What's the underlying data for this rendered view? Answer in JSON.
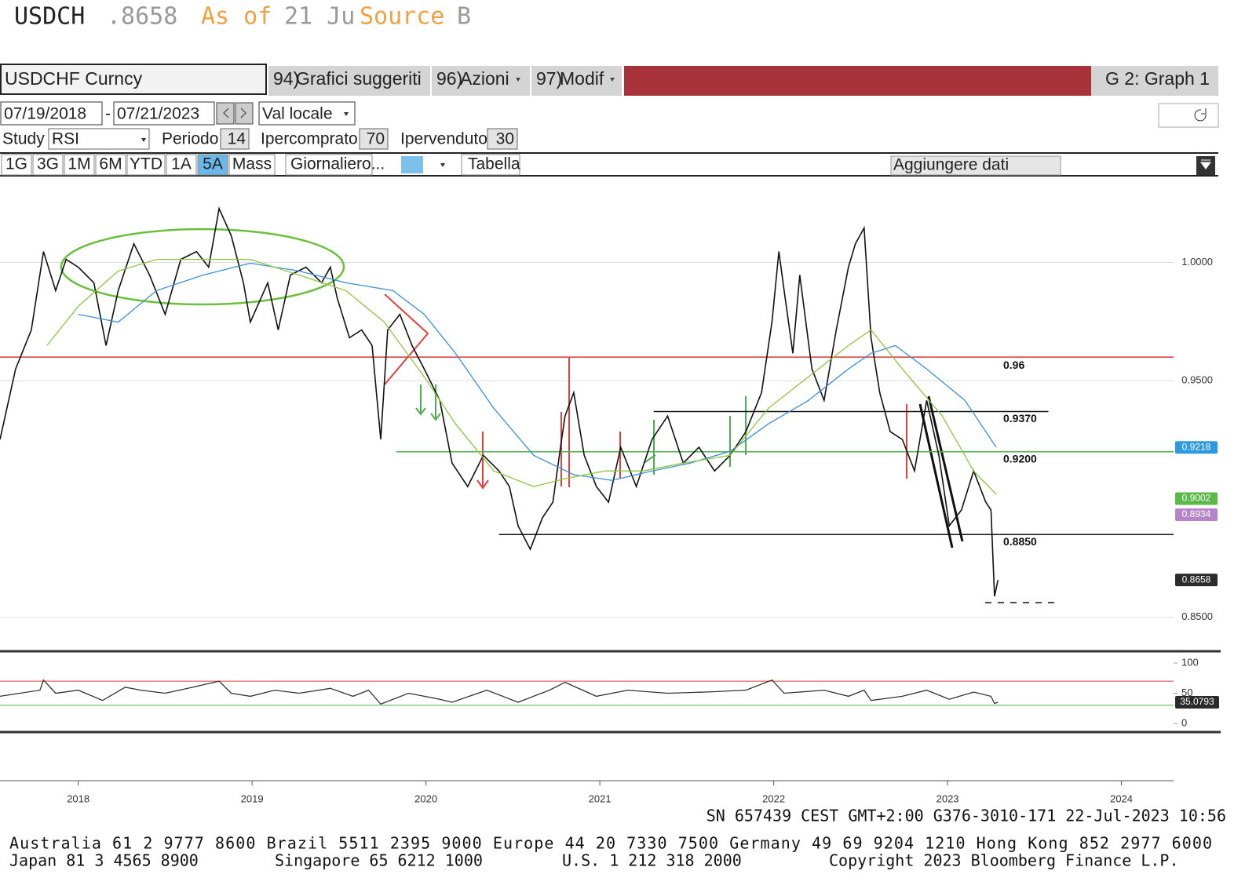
{
  "header": {
    "ticker": "USDCH",
    "price": ".8658",
    "as_of": "As of",
    "date": "21 Ju",
    "source": "Source",
    "source_rest": "B"
  },
  "toolbar": {
    "security": "USDCHF Curncy",
    "menu": [
      {
        "num": "94)",
        "label": "Grafici suggeriti"
      },
      {
        "num": "96)",
        "label": "Azioni"
      },
      {
        "num": "97)",
        "label": "Modif"
      }
    ],
    "graph": "G 2: Graph 1",
    "start_date": "07/19/2018",
    "end_date": "07/21/2023",
    "currency": "Val locale",
    "study_label": "Study",
    "study": "RSI",
    "period_label": "Periodo",
    "period": 14,
    "overbought_label": "Ipercomprato",
    "overbought": 70,
    "oversold_label": "Ipervenduto",
    "oversold": 30,
    "ranges": [
      "1G",
      "3G",
      "1M",
      "6M",
      "YTD",
      "1A",
      "5A",
      "Mass"
    ],
    "active_range": 6,
    "frequency": "Giornaliero...",
    "table": "Tabella",
    "add_data": "Aggiungere dati"
  },
  "chart_data": [
    {
      "type": "line",
      "x": [
        2017.55,
        2017.64,
        2017.73,
        2017.8,
        2017.87,
        2017.93,
        2018.0,
        2018.09,
        2018.16,
        2018.23,
        2018.32,
        2018.41,
        2018.5,
        2018.59,
        2018.68,
        2018.75,
        2018.81,
        2018.88,
        2018.95,
        2018.99,
        2019.09,
        2019.15,
        2019.22,
        2019.31,
        2019.4,
        2019.45,
        2019.49,
        2019.56,
        2019.63,
        2019.69,
        2019.74,
        2019.78,
        2019.85,
        2019.92,
        2019.99,
        2020.08,
        2020.15,
        2020.24,
        2020.33,
        2020.42,
        2020.48,
        2020.53,
        2020.6,
        2020.67,
        2020.73,
        2020.78,
        2020.8,
        2020.85,
        2020.91,
        2020.98,
        2021.05,
        2021.12,
        2021.21,
        2021.3,
        2021.39,
        2021.48,
        2021.57,
        2021.66,
        2021.75,
        2021.84,
        2021.93,
        2021.99,
        2022.03,
        2022.06,
        2022.11,
        2022.15,
        2022.22,
        2022.29,
        2022.36,
        2022.43,
        2022.47,
        2022.52,
        2022.56,
        2022.61,
        2022.67,
        2022.74,
        2022.81,
        2022.88,
        2022.95,
        2023.01,
        2023.08,
        2023.15,
        2023.22,
        2023.25,
        2023.27,
        2023.29
      ],
      "series": [
        {
          "color": "#111111",
          "values": [
            0.9252,
            0.955,
            0.9715,
            1.0046,
            0.9881,
            1.0013,
            0.998,
            0.9914,
            0.9649,
            0.9881,
            1.0079,
            0.9947,
            0.9781,
            1.0013,
            1.0046,
            0.998,
            1.0228,
            1.0113,
            0.9914,
            0.9748,
            0.9914,
            0.9715,
            0.9947,
            0.998,
            0.9914,
            0.998,
            0.9848,
            0.9682,
            0.9715,
            0.9649,
            0.9252,
            0.9715,
            0.9781,
            0.9649,
            0.955,
            0.9417,
            0.9152,
            0.9053,
            0.9185,
            0.9119,
            0.9053,
            0.8887,
            0.8788,
            0.8921,
            0.8987,
            0.9252,
            0.9351,
            0.945,
            0.9185,
            0.9053,
            0.8987,
            0.9219,
            0.9053,
            0.9252,
            0.9351,
            0.9152,
            0.9219,
            0.9119,
            0.9185,
            0.9285,
            0.945,
            0.9748,
            1.0046,
            0.9881,
            0.9616,
            0.9947,
            0.955,
            0.9417,
            0.9715,
            0.998,
            1.0079,
            1.0146,
            0.9682,
            0.945,
            0.9285,
            0.9252,
            0.9119,
            0.9417,
            0.9185,
            0.8887,
            0.8954,
            0.9119,
            0.8987,
            0.8954,
            0.8589,
            0.8658
          ]
        },
        {
          "color": "#3a8fd8",
          "x": [
            2018.0,
            2018.23,
            2018.45,
            2018.72,
            2018.99,
            2019.27,
            2019.54,
            2019.81,
            2019.99,
            2020.17,
            2020.39,
            2020.62,
            2020.85,
            2021.07,
            2021.3,
            2021.52,
            2021.75,
            2021.97,
            2022.2,
            2022.43,
            2022.56,
            2022.7,
            2022.88,
            2023.1,
            2023.28
          ],
          "values": [
            0.9781,
            0.9748,
            0.9881,
            0.9947,
            0.9997,
            0.9964,
            0.9914,
            0.9881,
            0.9781,
            0.9616,
            0.9384,
            0.9185,
            0.9103,
            0.9079,
            0.9119,
            0.9152,
            0.9202,
            0.9318,
            0.9417,
            0.955,
            0.9616,
            0.9649,
            0.955,
            0.9417,
            0.9219
          ]
        },
        {
          "color": "#8cc63f",
          "x": [
            2017.82,
            2018.0,
            2018.23,
            2018.45,
            2018.72,
            2018.99,
            2019.27,
            2019.54,
            2019.76,
            2019.99,
            2020.17,
            2020.39,
            2020.62,
            2020.8,
            2021.03,
            2021.25,
            2021.48,
            2021.75,
            2021.97,
            2022.2,
            2022.43,
            2022.56,
            2022.74,
            2022.97,
            2023.15,
            2023.28
          ],
          "values": [
            0.9649,
            0.9815,
            0.9964,
            1.0013,
            1.0013,
            1.0013,
            0.9947,
            0.9881,
            0.9748,
            0.9517,
            0.9318,
            0.9119,
            0.9053,
            0.9086,
            0.9119,
            0.9119,
            0.9152,
            0.9185,
            0.9384,
            0.9517,
            0.9649,
            0.9715,
            0.955,
            0.9351,
            0.9119,
            0.902
          ]
        }
      ],
      "xlim": [
        2017.55,
        2024.3
      ],
      "xticks": [
        2018,
        2019,
        2020,
        2021,
        2022,
        2023,
        2024
      ],
      "ylim": [
        0.837,
        1.034
      ],
      "yticks": [
        {
          "value": 0.85,
          "label": "0.8500"
        },
        {
          "value": 0.95,
          "label": "0.9500"
        },
        {
          "value": 1.0,
          "label": "1.0000"
        }
      ],
      "grid": true,
      "levels": [
        {
          "value": 0.96,
          "label": "0.96",
          "color": "#d9363e",
          "x": [
            2017.55,
            2024.3
          ]
        },
        {
          "value": 0.937,
          "label": "0.9370",
          "color": "#111111",
          "x": [
            2021.31,
            2023.58
          ]
        },
        {
          "value": 0.92,
          "label": "0.9200",
          "color": "#4caf50",
          "x": [
            2019.83,
            2024.3
          ]
        },
        {
          "value": 0.885,
          "label": "0.8850",
          "color": "#111111",
          "x": [
            2020.42,
            2024.3
          ]
        }
      ],
      "price_tags": [
        {
          "value": 0.9218,
          "color": "#2e9be0"
        },
        {
          "value": 0.9002,
          "color": "#5cb848"
        },
        {
          "value": 0.8934,
          "color": "#b784c9"
        },
        {
          "value": 0.8658,
          "color": "#2b2b2b"
        }
      ]
    },
    {
      "type": "line",
      "x": [
        2017.55,
        2017.78,
        2017.8,
        2017.87,
        2018.0,
        2018.14,
        2018.27,
        2018.36,
        2018.5,
        2018.63,
        2018.81,
        2018.88,
        2018.99,
        2019.13,
        2019.27,
        2019.45,
        2019.58,
        2019.67,
        2019.74,
        2019.9,
        2020.08,
        2020.15,
        2020.35,
        2020.53,
        2020.71,
        2020.8,
        2020.98,
        2021.16,
        2021.39,
        2021.61,
        2021.84,
        2021.99,
        2022.06,
        2022.29,
        2022.43,
        2022.52,
        2022.56,
        2022.74,
        2022.88,
        2023.01,
        2023.15,
        2023.25,
        2023.27,
        2023.29
      ],
      "series": [
        {
          "color": "#333333",
          "values": [
            45,
            55,
            72,
            50,
            55,
            38,
            60,
            55,
            50,
            58,
            70,
            50,
            45,
            55,
            50,
            58,
            45,
            55,
            32,
            50,
            40,
            35,
            55,
            35,
            55,
            68,
            45,
            55,
            50,
            52,
            55,
            72,
            50,
            55,
            45,
            55,
            38,
            45,
            55,
            40,
            52,
            45,
            33,
            35.0793
          ]
        }
      ],
      "ylim": [
        0,
        100
      ],
      "yticks": [
        0,
        50,
        100
      ],
      "value_tag": 35.0793
    }
  ],
  "footer": {
    "session": "SN 657439 CEST GMT+2:00 G376-3010-171 22-Jul-2023 10:56",
    "phones_1": "Australia 61 2 9777 8600 Brazil 5511 2395 9000 Europe 44 20 7330 7500 Germany 49 69 9204 1210 Hong Kong 852 2977 6000",
    "phones_2": [
      "Japan 81 3 4565 8900",
      "Singapore 65 6212 1000",
      "U.S. 1 212 318 2000",
      "Copyright 2023 Bloomberg Finance L.P."
    ]
  }
}
